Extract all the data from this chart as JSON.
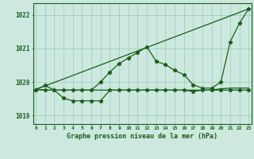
{
  "background_color": "#cce8df",
  "grid_color": "#99ccbb",
  "line_color": "#1a5e1a",
  "title": "Graphe pression niveau de la mer (hPa)",
  "ylim": [
    1018.75,
    1022.35
  ],
  "yticks": [
    1019,
    1020,
    1021,
    1022
  ],
  "xlim": [
    -0.3,
    23.3
  ],
  "xticks": [
    0,
    1,
    2,
    3,
    4,
    5,
    6,
    7,
    8,
    9,
    10,
    11,
    12,
    13,
    14,
    15,
    16,
    17,
    18,
    19,
    20,
    21,
    22,
    23
  ],
  "trend_line": {
    "x": [
      0,
      23
    ],
    "y": [
      1019.78,
      1022.18
    ]
  },
  "flat_line": {
    "x": [
      0,
      1,
      2,
      3,
      4,
      5,
      6,
      7,
      8,
      9,
      10,
      11,
      12,
      13,
      14,
      15,
      16,
      17,
      18,
      19,
      20,
      21,
      22,
      23
    ],
    "y": [
      1019.78,
      1019.76,
      1019.76,
      1019.76,
      1019.76,
      1019.76,
      1019.76,
      1019.76,
      1019.76,
      1019.76,
      1019.76,
      1019.76,
      1019.76,
      1019.76,
      1019.76,
      1019.76,
      1019.76,
      1019.76,
      1019.76,
      1019.76,
      1019.8,
      1019.82,
      1019.82,
      1019.82
    ]
  },
  "jagged_line": {
    "x": [
      0,
      1,
      2,
      3,
      4,
      5,
      6,
      7,
      8,
      9,
      10,
      11,
      12,
      13,
      14,
      15,
      16,
      17,
      18,
      19,
      20,
      21,
      22,
      23
    ],
    "y": [
      1019.78,
      1019.9,
      1019.76,
      1019.76,
      1019.76,
      1019.76,
      1019.76,
      1020.0,
      1020.3,
      1020.55,
      1020.72,
      1020.88,
      1021.05,
      1020.62,
      1020.52,
      1020.35,
      1020.22,
      1019.92,
      1019.82,
      1019.82,
      1020.0,
      1021.2,
      1021.75,
      1022.18
    ]
  },
  "dip_line": {
    "x": [
      0,
      1,
      2,
      3,
      4,
      5,
      6,
      7,
      8,
      9,
      10,
      11,
      12,
      13,
      14,
      15,
      16,
      17,
      18,
      19,
      20,
      21,
      22,
      23
    ],
    "y": [
      1019.78,
      1019.76,
      1019.76,
      1019.52,
      1019.44,
      1019.44,
      1019.44,
      1019.44,
      1019.76,
      1019.76,
      1019.76,
      1019.76,
      1019.76,
      1019.76,
      1019.76,
      1019.76,
      1019.76,
      1019.72,
      1019.76,
      1019.76,
      1019.76,
      1019.76,
      1019.76,
      1019.76
    ]
  }
}
